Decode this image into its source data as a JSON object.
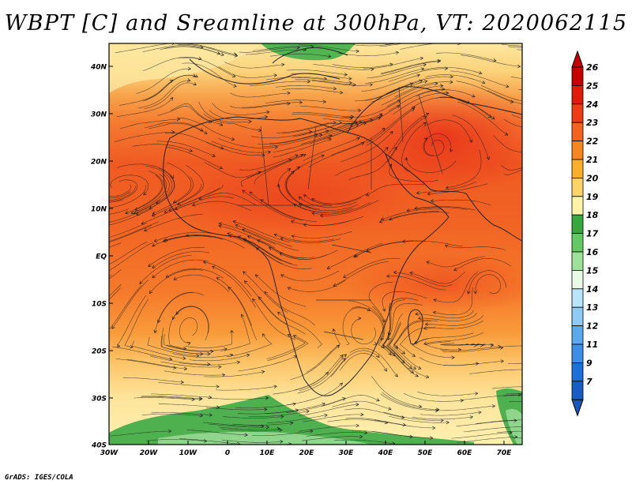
{
  "title": "WBPT [C] and Sreamline at 300hPa, VT: 2020062115",
  "footer": "GrADS: IGES/COLA",
  "map": {
    "lat_ticks": [
      "40N",
      "30N",
      "20N",
      "10N",
      "EQ",
      "10S",
      "20S",
      "30S",
      "40S"
    ],
    "lon_ticks": [
      "30W",
      "20W",
      "10W",
      "0",
      "10E",
      "20E",
      "30E",
      "40E",
      "50E",
      "60E",
      "70E"
    ]
  },
  "colorbar": {
    "labels": [
      "26",
      "25",
      "24",
      "23",
      "22",
      "21",
      "20",
      "19",
      "18",
      "17",
      "16",
      "15",
      "14",
      "13",
      "12",
      "11",
      "9",
      "7"
    ],
    "colors": [
      "#c40000",
      "#e11a0a",
      "#f03c16",
      "#f56220",
      "#f7861f",
      "#fbae2a",
      "#fdd468",
      "#fef2a8",
      "#36a83c",
      "#64c863",
      "#9ee29a",
      "#e8fbe7",
      "#b8e5fb",
      "#8ccbf5",
      "#5aa9ee",
      "#3d8ee6",
      "#1d6fdc",
      "#1b5cc4"
    ]
  },
  "colors": {
    "title": "#000000"
  }
}
